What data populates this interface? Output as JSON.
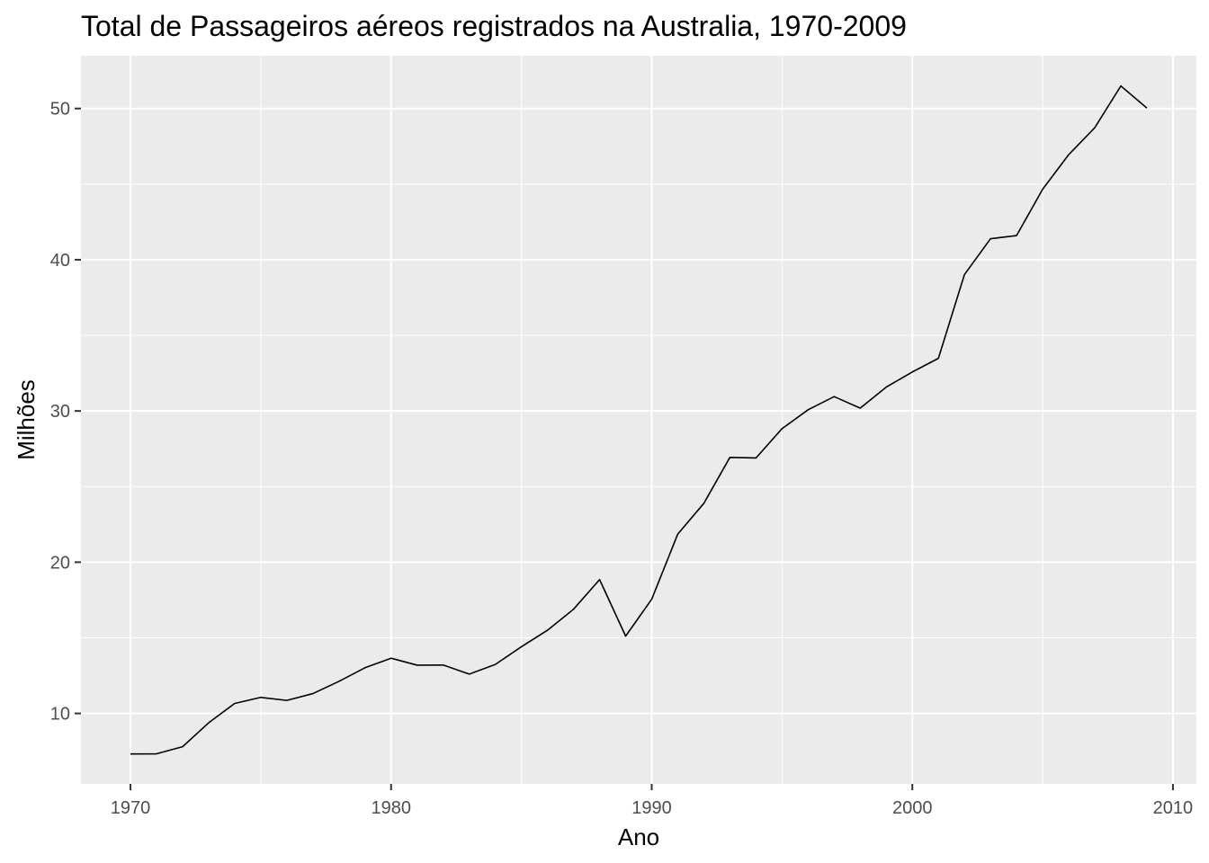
{
  "chart_data": {
    "type": "line",
    "title": "Total de Passageiros aéreos registrados na Australia, 1970-2009",
    "xlabel": "Ano",
    "ylabel": "Milhões",
    "xlim": [
      1968.1,
      2010.9
    ],
    "ylim": [
      5.34,
      53.49
    ],
    "x_ticks": [
      1970,
      1980,
      1990,
      2000,
      2010
    ],
    "y_ticks": [
      10,
      20,
      30,
      40,
      50
    ],
    "grid": true,
    "legend": "none",
    "panel_color": "#ebebeb",
    "grid_color": "#ffffff",
    "line_color": "#000000",
    "series": [
      {
        "x": [
          1970,
          1971,
          1972,
          1973,
          1974,
          1975,
          1976,
          1977,
          1978,
          1979,
          1980,
          1981,
          1982,
          1983,
          1984,
          1985,
          1986,
          1987,
          1988,
          1989,
          1990,
          1991,
          1992,
          1993,
          1994,
          1995,
          1996,
          1997,
          1998,
          1999,
          2000,
          2001,
          2002,
          2003,
          2004,
          2005,
          2006,
          2007,
          2008,
          2009
        ],
        "values": [
          7.32,
          7.33,
          7.8,
          9.38,
          10.66,
          11.06,
          10.86,
          11.31,
          12.12,
          13.02,
          13.65,
          13.19,
          13.2,
          12.6,
          13.24,
          14.41,
          15.5,
          16.89,
          18.85,
          15.11,
          17.55,
          21.86,
          23.89,
          26.93,
          26.89,
          28.83,
          30.08,
          30.95,
          30.19,
          31.58,
          32.58,
          33.48,
          39.02,
          41.39,
          41.6,
          44.66,
          46.95,
          48.73,
          51.49,
          50.03
        ]
      }
    ]
  }
}
